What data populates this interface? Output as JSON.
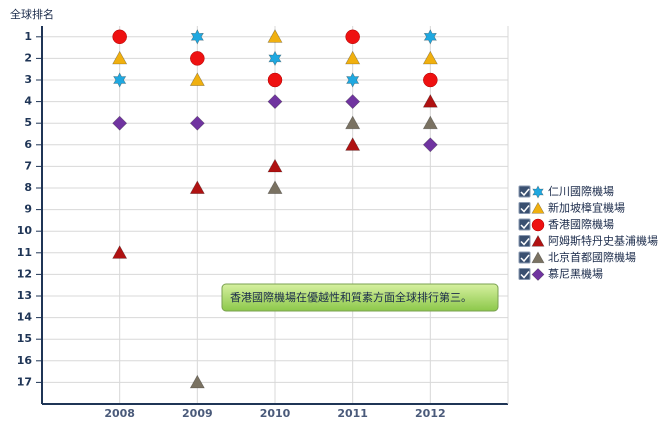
{
  "chart_data": {
    "type": "scatter",
    "y_label": "全球排名",
    "categories": [
      "2008",
      "2009",
      "2010",
      "2011",
      "2012"
    ],
    "ylim": [
      18,
      0.5
    ],
    "yticks": [
      1,
      2,
      3,
      4,
      5,
      6,
      7,
      8,
      9,
      10,
      11,
      12,
      13,
      14,
      15,
      16,
      17
    ],
    "grid": true,
    "series": [
      {
        "name": "仁川國際機場",
        "color": "#1fa8e0",
        "marker": "star",
        "values": [
          3,
          1,
          2,
          3,
          1
        ]
      },
      {
        "name": "新加坡樟宜機場",
        "color": "#f0b010",
        "marker": "triangle",
        "values": [
          2,
          3,
          1,
          2,
          2
        ]
      },
      {
        "name": "香港國際機場",
        "color": "#ee1111",
        "marker": "circle",
        "values": [
          1,
          2,
          3,
          1,
          3
        ]
      },
      {
        "name": "阿姆斯特丹史基浦機場",
        "color": "#b01212",
        "marker": "triangle",
        "values": [
          11,
          8,
          7,
          6,
          4
        ]
      },
      {
        "name": "北京首都國際機場",
        "color": "#7a7262",
        "marker": "triangle",
        "values": [
          null,
          17,
          8,
          5,
          5
        ]
      },
      {
        "name": "慕尼黑機場",
        "color": "#7034a0",
        "marker": "diamond",
        "values": [
          5,
          5,
          4,
          4,
          6
        ]
      }
    ],
    "annotation": "香港國際機場在優越性和質素方面全球排行第三。"
  }
}
